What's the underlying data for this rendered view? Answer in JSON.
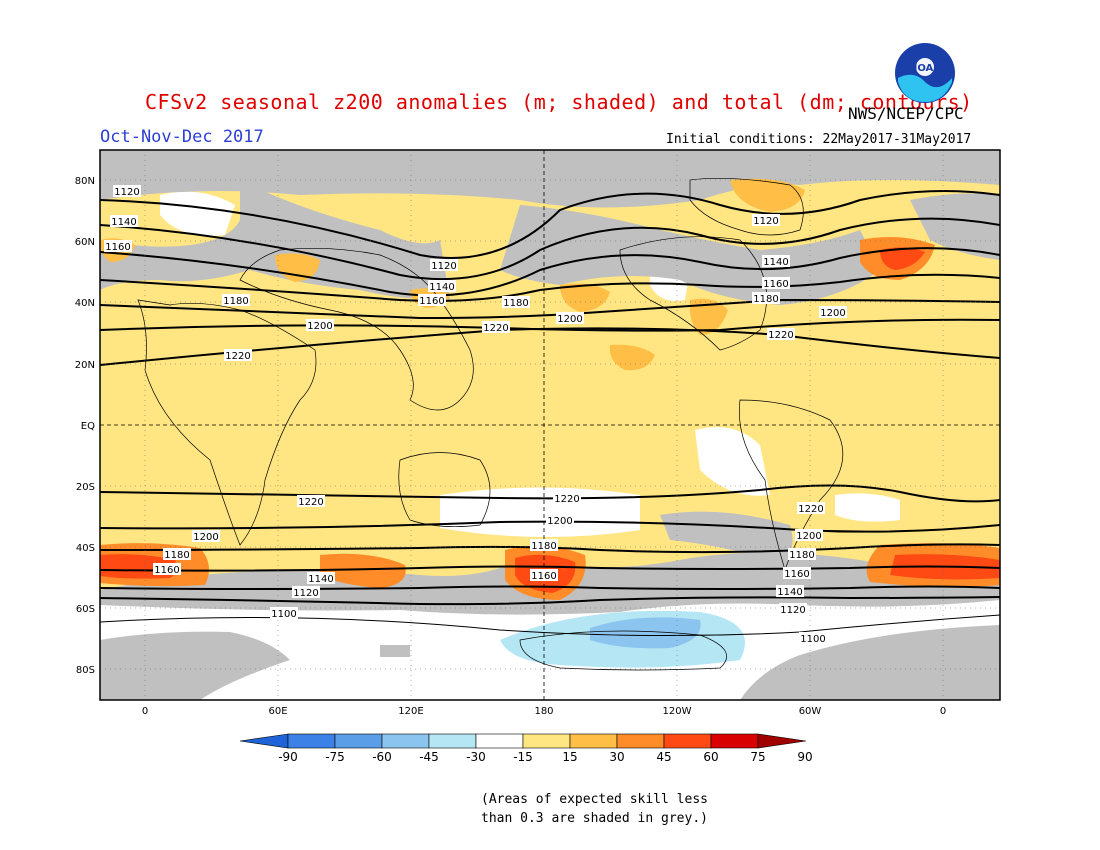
{
  "title": "CFSv2 seasonal z200 anomalies (m; shaded) and total (dm; contours)",
  "season": "Oct-Nov-Dec 2017",
  "agency": "NWS/NCEP/CPC",
  "initial_conditions": "Initial conditions: 22May2017-31May2017",
  "logo_text": "NOAA",
  "note_line1": "(Areas of expected skill less",
  "note_line2": "than 0.3 are shaded in grey.)",
  "lat_ticks": [
    "80N",
    "60N",
    "40N",
    "20N",
    "EQ",
    "20S",
    "40S",
    "60S",
    "80S"
  ],
  "lon_ticks": [
    "0",
    "60E",
    "120E",
    "180",
    "120W",
    "60W",
    "0"
  ],
  "colorbar": {
    "labels": [
      "-90",
      "-75",
      "-60",
      "-45",
      "-30",
      "-15",
      "15",
      "30",
      "45",
      "60",
      "75",
      "90"
    ],
    "colors": [
      "#1e64d8",
      "#3c82e6",
      "#5a9ee8",
      "#8cc4f0",
      "#b4e6f4",
      "#ffffff",
      "#ffe682",
      "#ffbe46",
      "#ff8c28",
      "#ff4a14",
      "#d80000",
      "#a00000"
    ]
  },
  "colors": {
    "title": "#e00000",
    "season": "#2b3fd6",
    "skill_grey": "#c0c0c0",
    "background": "#ffffff"
  },
  "contour_labels": {
    "north": [
      "1120",
      "1140",
      "1160",
      "1180",
      "1200",
      "1220"
    ],
    "south": [
      "1220",
      "1200",
      "1180",
      "1160",
      "1140",
      "1120",
      "1100"
    ]
  }
}
